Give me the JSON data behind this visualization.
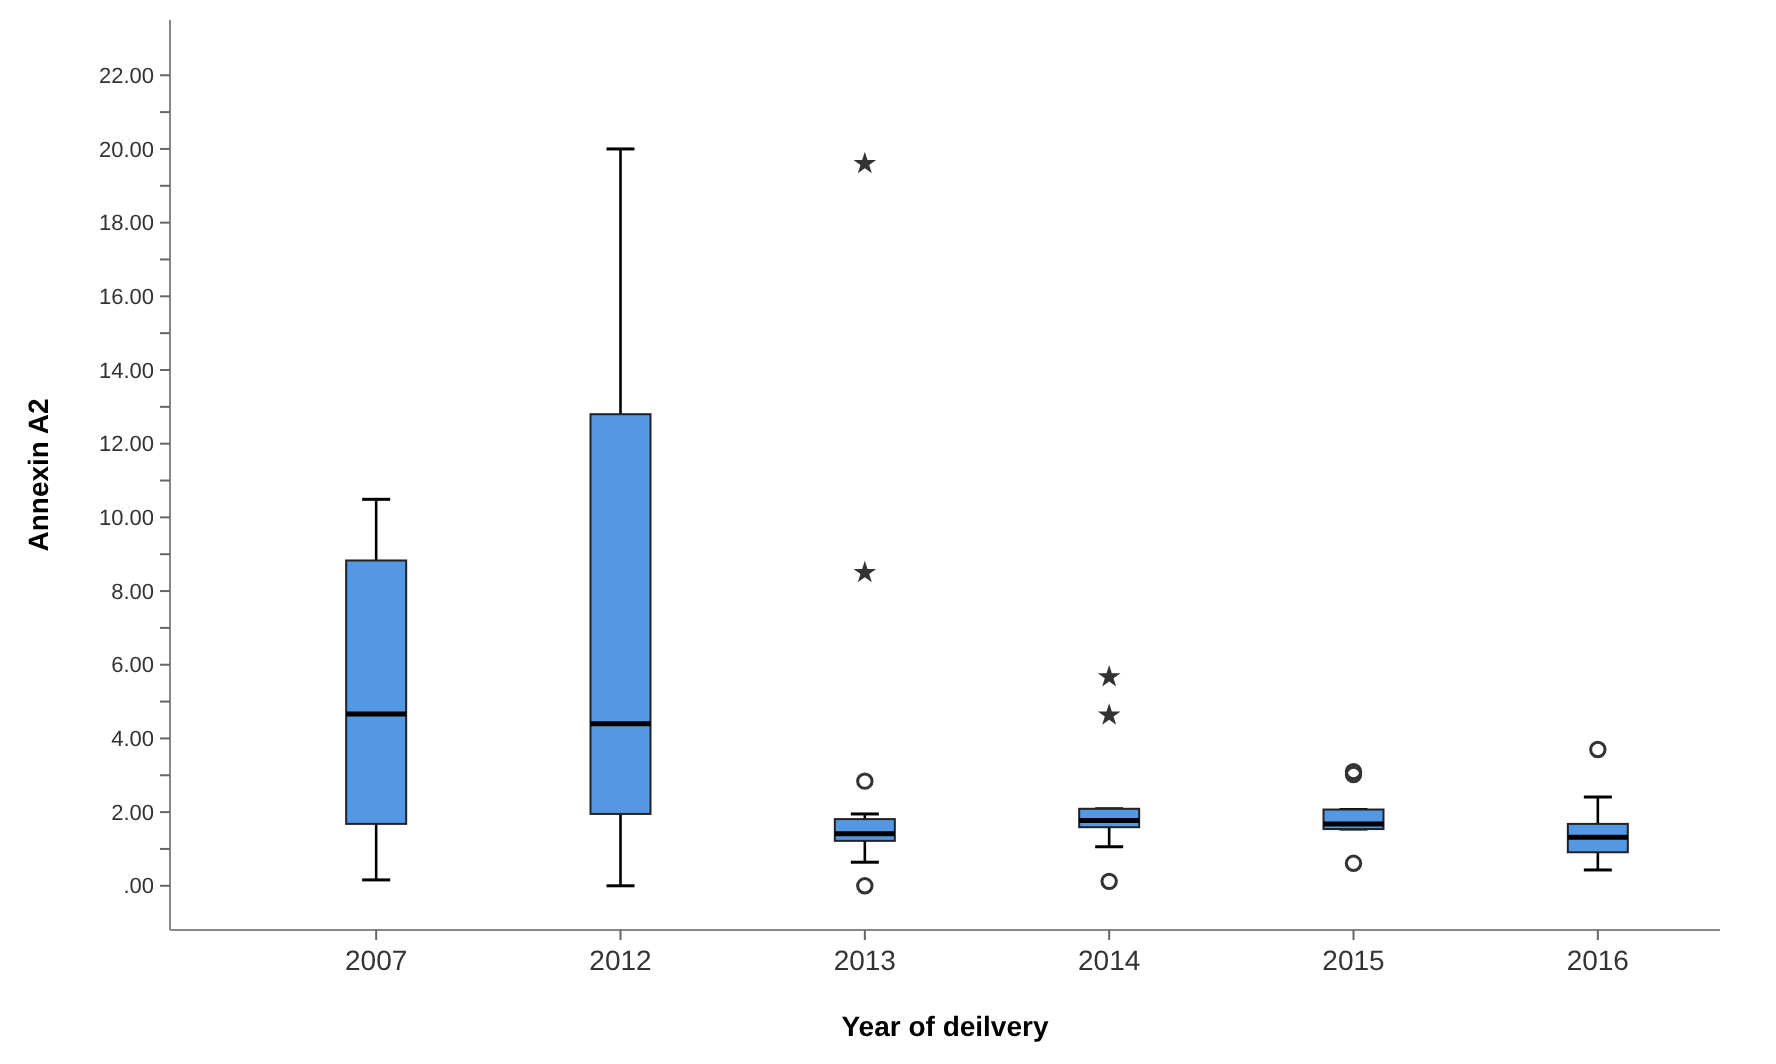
{
  "chart_data": {
    "type": "box",
    "xlabel": "Year of deilvery",
    "ylabel": "Annexin A2",
    "categories": [
      "2007",
      "2012",
      "2013",
      "2014",
      "2015",
      "2016"
    ],
    "ylim": [
      -1.2,
      23.5
    ],
    "yticks": [
      {
        "value": 0,
        "label": ".00"
      },
      {
        "value": 1,
        "label": null
      },
      {
        "value": 2,
        "label": "2.00"
      },
      {
        "value": 3,
        "label": null
      },
      {
        "value": 4,
        "label": "4.00"
      },
      {
        "value": 5,
        "label": null
      },
      {
        "value": 6,
        "label": "6.00"
      },
      {
        "value": 7,
        "label": null
      },
      {
        "value": 8,
        "label": "8.00"
      },
      {
        "value": 9,
        "label": null
      },
      {
        "value": 10,
        "label": "10.00"
      },
      {
        "value": 11,
        "label": null
      },
      {
        "value": 12,
        "label": "12.00"
      },
      {
        "value": 13,
        "label": null
      },
      {
        "value": 14,
        "label": "14.00"
      },
      {
        "value": 15,
        "label": null
      },
      {
        "value": 16,
        "label": "16.00"
      },
      {
        "value": 17,
        "label": null
      },
      {
        "value": 18,
        "label": "18.00"
      },
      {
        "value": 19,
        "label": null
      },
      {
        "value": 20,
        "label": "20.00"
      },
      {
        "value": 21,
        "label": null
      },
      {
        "value": 22,
        "label": "22.00"
      }
    ],
    "grid": false,
    "series": [
      {
        "color": "#5497e3",
        "boxes": [
          {
            "low": 0.16,
            "q1": 1.68,
            "median": 4.66,
            "q3": 8.83,
            "high": 10.49
          },
          {
            "low": 0.0,
            "q1": 1.95,
            "median": 4.4,
            "q3": 12.8,
            "high": 20.0
          },
          {
            "low": 0.64,
            "q1": 1.22,
            "median": 1.41,
            "q3": 1.81,
            "high": 1.95,
            "outliers": [
              19.6,
              8.5,
              2.84,
              0.0
            ]
          },
          {
            "low": 1.06,
            "q1": 1.59,
            "median": 1.77,
            "q3": 2.09,
            "high": 2.09,
            "outliers": [
              5.67,
              4.63,
              0.12
            ]
          },
          {
            "low": 1.54,
            "q1": 1.54,
            "median": 1.68,
            "q3": 2.07,
            "high": 2.07,
            "outliers": [
              3.1,
              3.02,
              0.61
            ]
          },
          {
            "low": 0.43,
            "q1": 0.91,
            "median": 1.32,
            "q3": 1.68,
            "high": 2.41,
            "outliers": [
              3.7
            ]
          }
        ]
      }
    ]
  }
}
